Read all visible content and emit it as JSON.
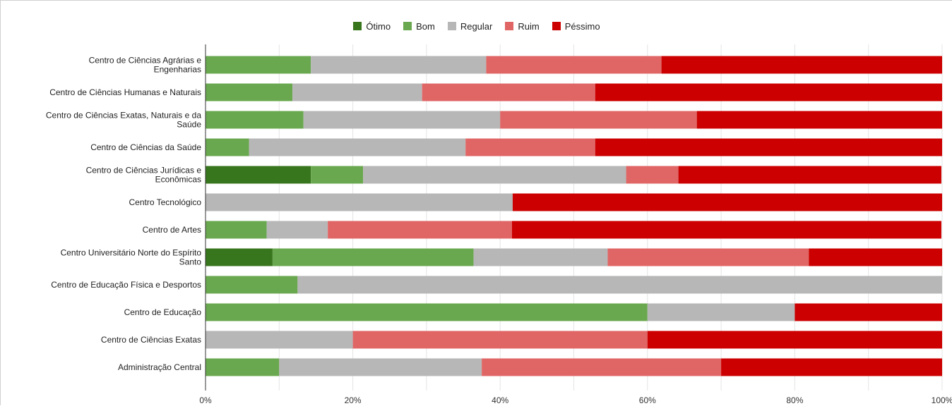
{
  "chart_data": {
    "type": "bar",
    "orientation": "horizontal",
    "stacked": true,
    "percent_axis": true,
    "xlim": [
      0,
      100
    ],
    "x_ticks": [
      "0%",
      "20%",
      "40%",
      "60%",
      "80%",
      "100%"
    ],
    "grid": true,
    "legend_position": "top",
    "categories": [
      [
        "Centro de Ciências Agrárias e",
        "Engenharias"
      ],
      [
        "Centro de Ciências Humanas e Naturais"
      ],
      [
        "Centro de Ciências Exatas, Naturais e da",
        "Saúde"
      ],
      [
        "Centro de Ciências da Saúde"
      ],
      [
        "Centro de Ciências Jurídicas e",
        "Econômicas"
      ],
      [
        "Centro Tecnológico"
      ],
      [
        "Centro de Artes"
      ],
      [
        "Centro Universitário Norte do Espírito",
        "Santo"
      ],
      [
        "Centro de Educação Física e Desportos"
      ],
      [
        "Centro de Educação"
      ],
      [
        "Centro de Ciências Exatas"
      ],
      [
        "Administração Central"
      ]
    ],
    "series": [
      {
        "name": "Ótimo",
        "color": "#38761d",
        "values": [
          0,
          0,
          0,
          0,
          14.3,
          0,
          0,
          9.1,
          0,
          0,
          0,
          0
        ]
      },
      {
        "name": "Bom",
        "color": "#6aa84f",
        "values": [
          14.3,
          11.8,
          13.3,
          5.9,
          7.1,
          0,
          8.3,
          27.3,
          12.5,
          60,
          0,
          10
        ]
      },
      {
        "name": "Regular",
        "color": "#b7b7b7",
        "values": [
          23.8,
          17.6,
          26.7,
          29.4,
          35.7,
          41.7,
          8.3,
          18.2,
          87.5,
          20,
          20,
          27.5
        ]
      },
      {
        "name": "Ruim",
        "color": "#e06666",
        "values": [
          23.8,
          23.5,
          26.7,
          17.6,
          7.1,
          0,
          25,
          27.3,
          0,
          0,
          40,
          32.5
        ]
      },
      {
        "name": "Péssimo",
        "color": "#cc0000",
        "values": [
          38.1,
          47.1,
          33.3,
          47.1,
          35.7,
          58.3,
          58.3,
          18.2,
          0,
          20,
          40,
          30
        ]
      }
    ]
  }
}
